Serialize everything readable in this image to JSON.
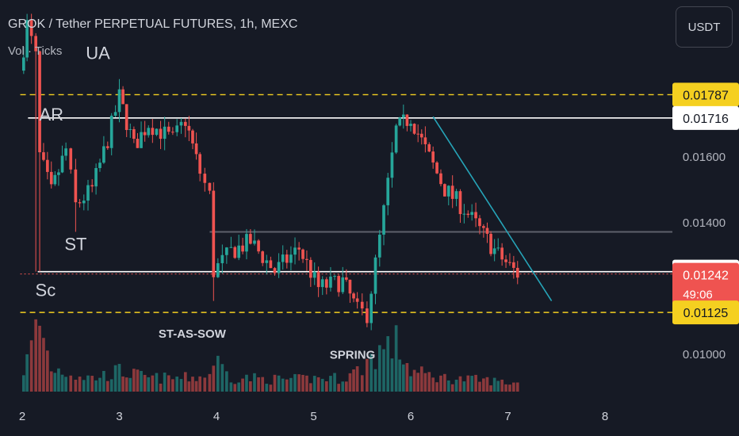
{
  "header": {
    "title": "GROK / Tether PERPETUAL FUTURES, 1h, MEXC",
    "subtitle": "Vol · Ticks"
  },
  "currency_button": "USDT",
  "colors": {
    "background": "#161a25",
    "up": "#26a69a",
    "down": "#ef5350",
    "guide_yellow": "#f5d020",
    "guide_white": "#ffffff",
    "trendline": "#26a4b8"
  },
  "chart_data": {
    "type": "candlestick",
    "ylim": [
      0.0088,
      0.02
    ],
    "x_range": [
      1.98,
      8.7
    ],
    "y_ticks": [
      "0.01000",
      "0.01400",
      "0.01600"
    ],
    "y_tick_values": [
      0.01,
      0.014,
      0.016
    ],
    "x_ticks": [
      "2",
      "3",
      "4",
      "5",
      "6",
      "7",
      "8"
    ],
    "x_tick_values": [
      2,
      3,
      4,
      5,
      6,
      7,
      8
    ],
    "price_labels": [
      {
        "text": "0.01787",
        "value": 0.01787,
        "style": "yellow"
      },
      {
        "text": "0.01716",
        "value": 0.01716,
        "style": "white"
      },
      {
        "text": "0.01249",
        "value": 0.01249,
        "style": "white"
      },
      {
        "text": "0.01242",
        "value": 0.01242,
        "style": "red",
        "sub": "49:06"
      },
      {
        "text": "0.01125",
        "value": 0.01125,
        "style": "yellow"
      }
    ],
    "levels": [
      {
        "value": 0.01787,
        "style": "yellow-dashed",
        "from": 1.98,
        "to": 8.7
      },
      {
        "value": 0.01716,
        "style": "white",
        "from": 2.06,
        "to": 8.7
      },
      {
        "value": 0.01125,
        "style": "yellow-dashed",
        "from": 1.98,
        "to": 8.7
      },
      {
        "value": 0.01249,
        "style": "white",
        "from": 2.16,
        "to": 8.7
      },
      {
        "value": 0.0137,
        "style": "gray",
        "from": 3.93,
        "to": 8.7
      },
      {
        "value": 0.01242,
        "style": "red-dotted",
        "from": 1.98,
        "to": 8.7
      }
    ],
    "trendline": {
      "x1": 6.23,
      "y1": 0.0172,
      "x2": 7.45,
      "y2": 0.0116
    },
    "annotations": [
      {
        "text": "UA",
        "x": 2.78,
        "y": 0.01895
      },
      {
        "text": "AR",
        "x": 2.3,
        "y": 0.01708
      },
      {
        "text": "ST",
        "x": 2.55,
        "y": 0.01315
      },
      {
        "text": "Sc",
        "x": 2.24,
        "y": 0.01175
      },
      {
        "text": "ST-AS-SOW",
        "x": 3.75,
        "y": 0.01048
      },
      {
        "text": "SPRING",
        "x": 5.4,
        "y": 0.00984
      }
    ],
    "segments": [
      {
        "t": 1.98,
        "p": 0.0186,
        "n": 2,
        "v": 0.2
      },
      {
        "t": 2.05,
        "p": 0.02,
        "n": 1,
        "v": 0.45
      },
      {
        "t": 2.14,
        "p": 0.019,
        "n": 1,
        "v": 0.9
      },
      {
        "t": 2.18,
        "p": 0.016,
        "n": 1,
        "v": 1.0
      },
      {
        "t": 2.3,
        "p": 0.0149,
        "n": 3,
        "v": 0.35
      },
      {
        "t": 2.45,
        "p": 0.0162,
        "n": 4,
        "v": 0.3
      },
      {
        "t": 2.55,
        "p": 0.0145,
        "n": 5,
        "v": 0.25
      },
      {
        "t": 2.72,
        "p": 0.015,
        "n": 5,
        "v": 0.2
      },
      {
        "t": 2.88,
        "p": 0.0165,
        "n": 5,
        "v": 0.25
      },
      {
        "t": 3.0,
        "p": 0.0178,
        "n": 4,
        "v": 0.3
      },
      {
        "t": 3.15,
        "p": 0.0163,
        "n": 5,
        "v": 0.25
      },
      {
        "t": 3.3,
        "p": 0.017,
        "n": 5,
        "v": 0.2
      },
      {
        "t": 3.55,
        "p": 0.0165,
        "n": 7,
        "v": 0.2
      },
      {
        "t": 3.68,
        "p": 0.0171,
        "n": 4,
        "v": 0.2
      },
      {
        "t": 3.83,
        "p": 0.0155,
        "n": 5,
        "v": 0.22
      },
      {
        "t": 3.93,
        "p": 0.0148,
        "n": 3,
        "v": 0.25
      },
      {
        "t": 3.97,
        "p": 0.0125,
        "n": 1,
        "v": 0.5
      },
      {
        "t": 4.15,
        "p": 0.0131,
        "n": 5,
        "v": 0.2
      },
      {
        "t": 4.35,
        "p": 0.0134,
        "n": 6,
        "v": 0.2
      },
      {
        "t": 4.6,
        "p": 0.0125,
        "n": 7,
        "v": 0.18
      },
      {
        "t": 4.85,
        "p": 0.0132,
        "n": 7,
        "v": 0.18
      },
      {
        "t": 5.05,
        "p": 0.012,
        "n": 5,
        "v": 0.2
      },
      {
        "t": 5.3,
        "p": 0.0122,
        "n": 6,
        "v": 0.2
      },
      {
        "t": 5.45,
        "p": 0.0113,
        "n": 4,
        "v": 0.3
      },
      {
        "t": 5.55,
        "p": 0.0112,
        "n": 3,
        "v": 0.45
      },
      {
        "t": 5.68,
        "p": 0.0135,
        "n": 3,
        "v": 0.6
      },
      {
        "t": 5.85,
        "p": 0.0168,
        "n": 4,
        "v": 0.7
      },
      {
        "t": 6.0,
        "p": 0.0172,
        "n": 4,
        "v": 0.3
      },
      {
        "t": 6.15,
        "p": 0.0162,
        "n": 4,
        "v": 0.25
      },
      {
        "t": 6.35,
        "p": 0.015,
        "n": 5,
        "v": 0.2
      },
      {
        "t": 6.55,
        "p": 0.0144,
        "n": 5,
        "v": 0.18
      },
      {
        "t": 6.75,
        "p": 0.0136,
        "n": 5,
        "v": 0.17
      },
      {
        "t": 6.9,
        "p": 0.013,
        "n": 4,
        "v": 0.15
      },
      {
        "t": 7.1,
        "p": 0.01242,
        "n": 5,
        "v": 0.12
      }
    ]
  }
}
